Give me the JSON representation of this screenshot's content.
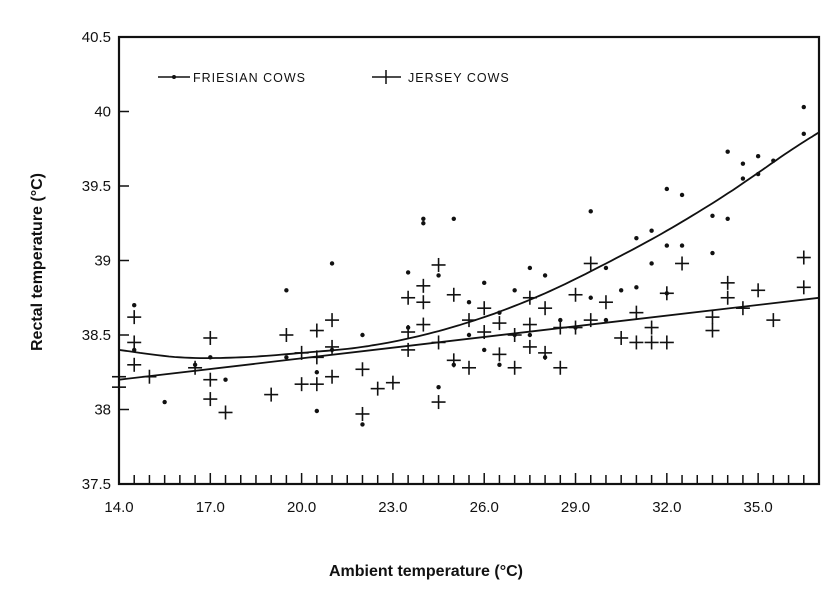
{
  "chart_data": {
    "type": "scatter",
    "xlabel": "Ambient temperature (°C)",
    "ylabel": "Rectal temperature (°C)",
    "xlim": [
      14.0,
      37.0
    ],
    "ylim": [
      37.5,
      40.5
    ],
    "x_ticks": [
      14.0,
      17.0,
      20.0,
      23.0,
      26.0,
      29.0,
      32.0,
      35.0
    ],
    "x_tick_labels": [
      "14.0",
      "17.0",
      "20.0",
      "23.0",
      "26.0",
      "29.0",
      "32.0",
      "35.0"
    ],
    "y_ticks": [
      37.5,
      38,
      38.5,
      39,
      39.5,
      40,
      40.5
    ],
    "y_tick_labels": [
      "37.5",
      "38",
      "38.5",
      "39",
      "39.5",
      "40",
      "40.5"
    ],
    "x_minor_step": 0.5,
    "grid": false,
    "legend": {
      "placement": "top-left",
      "entries": [
        "FRIESIAN COWS",
        "JERSEY COWS"
      ]
    },
    "series": [
      {
        "name": "FRIESIAN COWS",
        "marker": "dot",
        "fit": "quadratic",
        "points": [
          [
            14.5,
            38.7
          ],
          [
            14.5,
            38.4
          ],
          [
            15.5,
            38.05
          ],
          [
            16.5,
            38.3
          ],
          [
            17.0,
            38.35
          ],
          [
            17.5,
            38.2
          ],
          [
            19.5,
            38.8
          ],
          [
            19.5,
            38.35
          ],
          [
            20.5,
            38.25
          ],
          [
            20.5,
            37.99
          ],
          [
            21.0,
            38.98
          ],
          [
            21.0,
            38.4
          ],
          [
            22.0,
            38.5
          ],
          [
            22.0,
            37.9
          ],
          [
            23.5,
            38.92
          ],
          [
            23.5,
            38.55
          ],
          [
            24.0,
            39.28
          ],
          [
            24.0,
            39.25
          ],
          [
            24.5,
            38.15
          ],
          [
            24.5,
            38.9
          ],
          [
            25.0,
            39.28
          ],
          [
            25.0,
            38.3
          ],
          [
            25.5,
            38.72
          ],
          [
            25.5,
            38.5
          ],
          [
            26.0,
            38.85
          ],
          [
            26.0,
            38.4
          ],
          [
            26.5,
            38.65
          ],
          [
            26.5,
            38.3
          ],
          [
            27.0,
            38.8
          ],
          [
            27.0,
            38.5
          ],
          [
            27.5,
            38.95
          ],
          [
            27.5,
            38.5
          ],
          [
            28.0,
            38.9
          ],
          [
            28.0,
            38.35
          ],
          [
            28.5,
            38.6
          ],
          [
            29.0,
            38.55
          ],
          [
            29.5,
            39.33
          ],
          [
            29.5,
            38.75
          ],
          [
            30.0,
            38.95
          ],
          [
            30.0,
            38.6
          ],
          [
            30.5,
            38.8
          ],
          [
            31.0,
            39.15
          ],
          [
            31.0,
            38.82
          ],
          [
            31.5,
            39.2
          ],
          [
            31.5,
            38.98
          ],
          [
            32.0,
            39.48
          ],
          [
            32.0,
            39.1
          ],
          [
            32.0,
            38.78
          ],
          [
            32.5,
            39.44
          ],
          [
            32.5,
            39.1
          ],
          [
            33.5,
            39.3
          ],
          [
            33.5,
            39.05
          ],
          [
            34.0,
            39.73
          ],
          [
            34.0,
            39.28
          ],
          [
            34.5,
            39.65
          ],
          [
            34.5,
            39.55
          ],
          [
            35.0,
            39.7
          ],
          [
            35.0,
            39.58
          ],
          [
            35.5,
            39.67
          ],
          [
            36.5,
            40.03
          ],
          [
            36.5,
            39.85
          ]
        ]
      },
      {
        "name": "JERSEY COWS",
        "marker": "plus",
        "fit": "linear",
        "points": [
          [
            14.0,
            38.22
          ],
          [
            14.0,
            38.15
          ],
          [
            14.5,
            38.62
          ],
          [
            14.5,
            38.45
          ],
          [
            14.5,
            38.3
          ],
          [
            15.0,
            38.22
          ],
          [
            16.5,
            38.28
          ],
          [
            17.0,
            38.48
          ],
          [
            17.0,
            38.2
          ],
          [
            17.0,
            38.07
          ],
          [
            17.5,
            37.98
          ],
          [
            19.0,
            38.1
          ],
          [
            19.5,
            38.5
          ],
          [
            20.0,
            38.38
          ],
          [
            20.0,
            38.17
          ],
          [
            20.5,
            38.53
          ],
          [
            20.5,
            38.35
          ],
          [
            20.5,
            38.17
          ],
          [
            21.0,
            38.6
          ],
          [
            21.0,
            38.42
          ],
          [
            21.0,
            38.22
          ],
          [
            22.0,
            38.27
          ],
          [
            22.0,
            37.97
          ],
          [
            22.5,
            38.14
          ],
          [
            23.0,
            38.18
          ],
          [
            23.5,
            38.75
          ],
          [
            23.5,
            38.52
          ],
          [
            23.5,
            38.4
          ],
          [
            24.0,
            38.83
          ],
          [
            24.0,
            38.57
          ],
          [
            24.0,
            38.72
          ],
          [
            24.5,
            38.97
          ],
          [
            24.5,
            38.45
          ],
          [
            24.5,
            38.05
          ],
          [
            25.0,
            38.77
          ],
          [
            25.0,
            38.33
          ],
          [
            25.5,
            38.6
          ],
          [
            25.5,
            38.28
          ],
          [
            26.0,
            38.68
          ],
          [
            26.0,
            38.52
          ],
          [
            26.5,
            38.58
          ],
          [
            26.5,
            38.37
          ],
          [
            27.0,
            38.5
          ],
          [
            27.0,
            38.28
          ],
          [
            27.5,
            38.75
          ],
          [
            27.5,
            38.57
          ],
          [
            27.5,
            38.42
          ],
          [
            28.0,
            38.68
          ],
          [
            28.0,
            38.38
          ],
          [
            28.5,
            38.55
          ],
          [
            28.5,
            38.28
          ],
          [
            29.0,
            38.77
          ],
          [
            29.0,
            38.55
          ],
          [
            29.5,
            38.98
          ],
          [
            29.5,
            38.6
          ],
          [
            30.0,
            38.72
          ],
          [
            30.5,
            38.48
          ],
          [
            31.0,
            38.65
          ],
          [
            31.0,
            38.45
          ],
          [
            31.5,
            38.55
          ],
          [
            31.5,
            38.45
          ],
          [
            32.0,
            38.78
          ],
          [
            32.0,
            38.45
          ],
          [
            32.5,
            38.98
          ],
          [
            33.5,
            38.62
          ],
          [
            33.5,
            38.53
          ],
          [
            34.0,
            38.85
          ],
          [
            34.0,
            38.75
          ],
          [
            34.5,
            38.68
          ],
          [
            35.0,
            38.8
          ],
          [
            35.5,
            38.6
          ],
          [
            36.5,
            39.02
          ],
          [
            36.5,
            38.82
          ]
        ]
      }
    ],
    "fit_lines": {
      "FRIESIAN COWS": {
        "type": "quadratic",
        "x": [
          14,
          16,
          18,
          20,
          22,
          24,
          26,
          28,
          30,
          32,
          34,
          36,
          37
        ],
        "y": [
          38.4,
          38.35,
          38.35,
          38.38,
          38.42,
          38.5,
          38.62,
          38.78,
          38.98,
          39.2,
          39.45,
          39.73,
          39.86
        ]
      },
      "JERSEY COWS": {
        "type": "linear",
        "x": [
          14,
          37
        ],
        "y": [
          38.2,
          38.75
        ]
      }
    }
  }
}
